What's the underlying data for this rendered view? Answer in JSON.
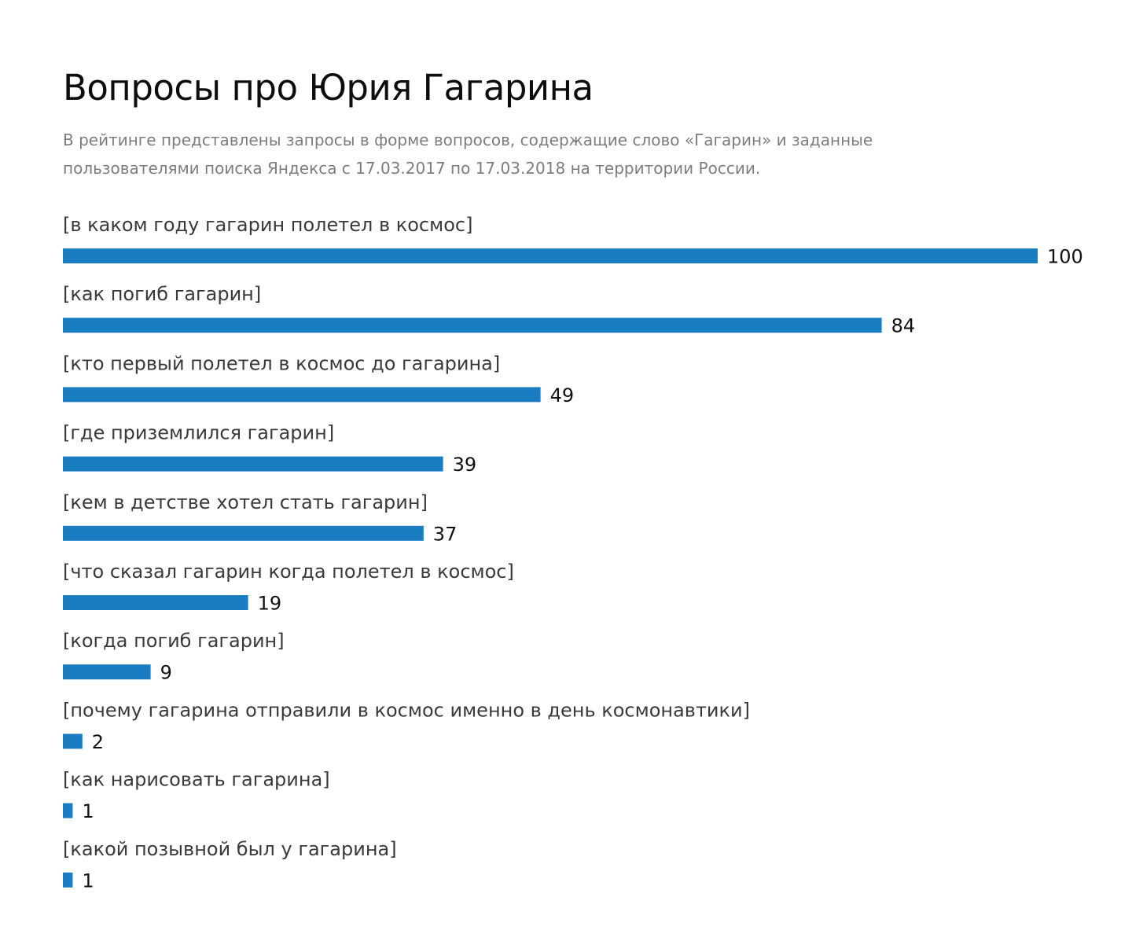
{
  "chart_data": {
    "type": "bar",
    "orientation": "horizontal",
    "title": "Вопросы про Юрия Гагарина",
    "subtitle": "В рейтинге представлены запросы в форме вопросов, содержащие слово «Гагарин» и заданные пользователями поиска Яндекса с 17.03.2017 по 17.03.2018 на территории России.",
    "categories": [
      "[в каком году гагарин полетел в космос]",
      "[как погиб гагарин]",
      "[кто первый полетел в космос до гагарина]",
      "[где приземлился гагарин]",
      "[кем в детстве хотел стать гагарин]",
      "[что сказал гагарин когда полетел в космос]",
      "[когда погиб гагарин]",
      "[почему гагарина отправили в космос именно в день космонавтики]",
      "[как нарисовать гагарина]",
      "[какой позывной был у гагарина]"
    ],
    "values": [
      100,
      84,
      49,
      39,
      37,
      19,
      9,
      2,
      1,
      1
    ],
    "xlim": [
      0,
      100
    ],
    "grid": false,
    "legend": "none",
    "bar_color": "#1a7cc1"
  }
}
